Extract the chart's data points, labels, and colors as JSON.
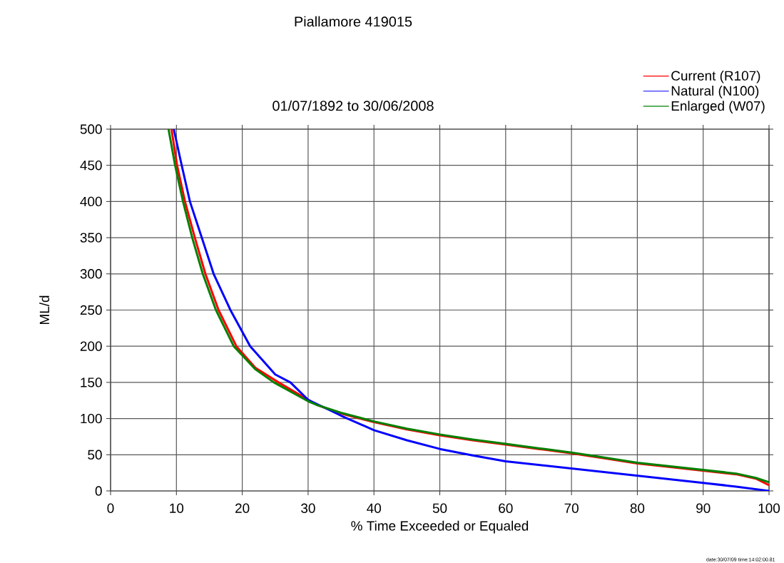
{
  "chart_data": {
    "type": "line",
    "title": "Piallamore 419015",
    "subtitle": "01/07/1892 to 30/06/2008",
    "xlabel": "% Time Exceeded or Equaled",
    "ylabel": "ML/d",
    "annotations": [
      "date:30/07/09 time:14:02:00.81"
    ],
    "xlim": [
      0,
      100
    ],
    "ylim": [
      0,
      500
    ],
    "xticks": [
      0,
      10,
      20,
      30,
      40,
      50,
      60,
      70,
      80,
      90,
      100
    ],
    "yticks": [
      0,
      50,
      100,
      150,
      200,
      250,
      300,
      350,
      400,
      450,
      500
    ],
    "grid": true,
    "legend": "top right",
    "series": [
      {
        "name": "Current (R107)",
        "color": "#ff0000",
        "x": [
          9.25,
          10.1,
          11.3,
          12.8,
          14.4,
          16.4,
          19.1,
          22,
          25.5,
          30,
          31.3,
          35,
          40,
          45,
          50,
          55,
          60,
          65,
          70,
          75,
          80,
          85,
          90,
          95,
          98,
          100
        ],
        "values": [
          500,
          450,
          400,
          350,
          300,
          250,
          200,
          170,
          150,
          null,
          119,
          107,
          95,
          85,
          77,
          70,
          64,
          58,
          52,
          45,
          38,
          33,
          28,
          23,
          17,
          8
        ]
      },
      {
        "name": "Natural (N100)",
        "color": "#0000ff",
        "x": [
          9.6,
          10.8,
          12.05,
          13.85,
          15.65,
          18.2,
          21.2,
          25,
          27.3,
          30,
          35,
          40,
          45,
          50,
          55,
          60,
          70,
          80,
          90,
          95,
          100
        ],
        "values": [
          500,
          450,
          400,
          350,
          300,
          250,
          200,
          161,
          150,
          126,
          104,
          84,
          70,
          58,
          49,
          41,
          31,
          21,
          11,
          6,
          0
        ]
      },
      {
        "name": "Enlarged (W07)",
        "color": "#008000",
        "x": [
          8.8,
          9.8,
          11.0,
          12.4,
          14.0,
          16.0,
          18.7,
          22,
          24.8,
          30,
          31.3,
          35,
          40,
          45,
          50,
          55,
          60,
          65,
          70,
          75,
          80,
          85,
          90,
          95,
          98,
          100
        ],
        "values": [
          500,
          450,
          400,
          350,
          300,
          250,
          200,
          168,
          150,
          124,
          119,
          108,
          96,
          86,
          78,
          71,
          65,
          59,
          53,
          46,
          39,
          34,
          29,
          24,
          18,
          12
        ]
      }
    ]
  }
}
